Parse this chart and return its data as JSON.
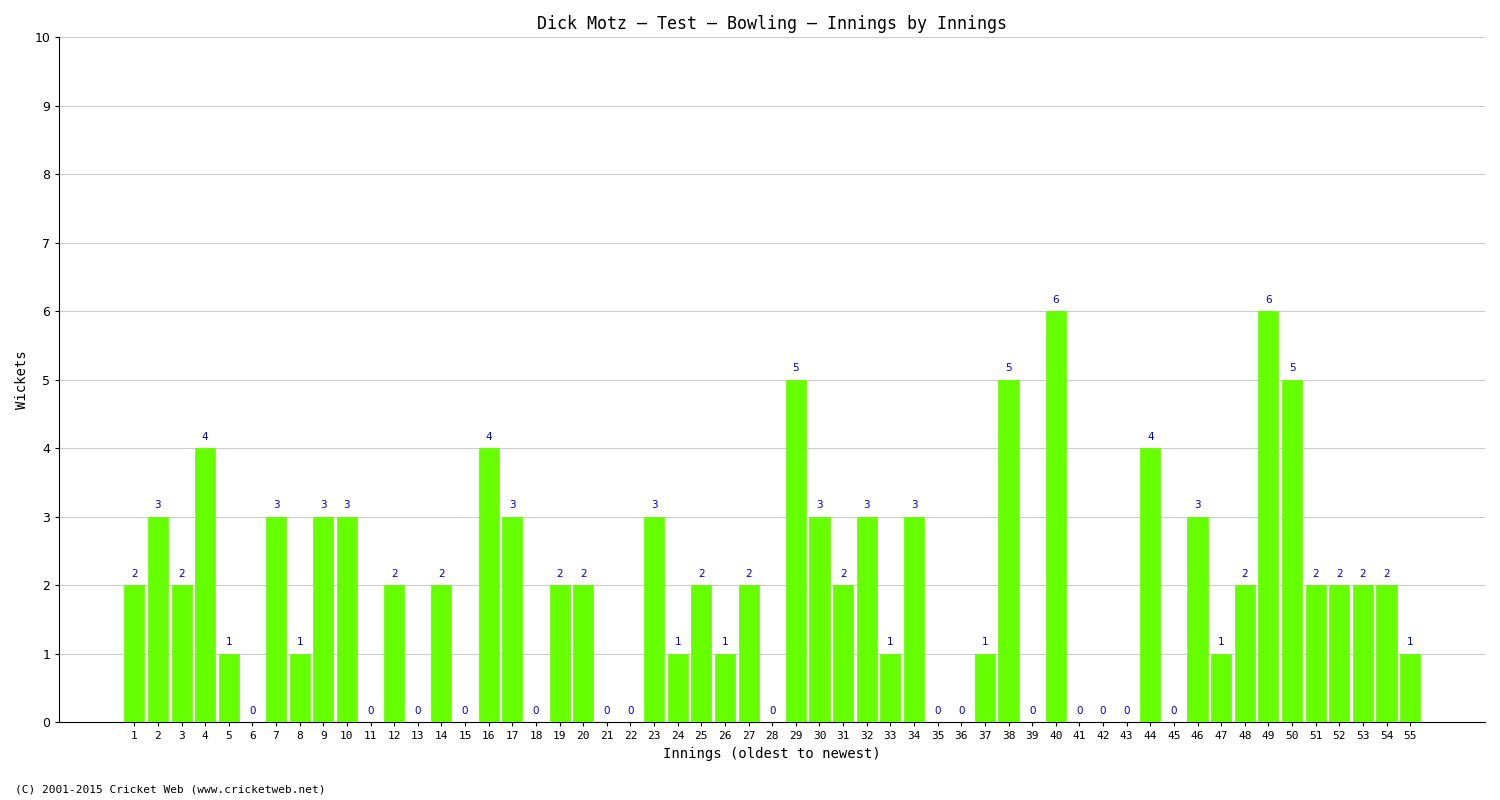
{
  "title": "Dick Motz – Test – Bowling – Innings by Innings",
  "xlabel": "Innings (oldest to newest)",
  "ylabel": "Wickets",
  "ylim": [
    0,
    10
  ],
  "yticks": [
    0,
    1,
    2,
    3,
    4,
    5,
    6,
    7,
    8,
    9,
    10
  ],
  "bar_color": "#66FF00",
  "bar_edge_color": "#66FF00",
  "label_color": "#0000CC",
  "background_color": "#FFFFFF",
  "grid_color": "#CCCCCC",
  "categories": [
    1,
    2,
    3,
    4,
    5,
    6,
    7,
    8,
    9,
    10,
    11,
    12,
    13,
    14,
    15,
    16,
    17,
    18,
    19,
    20,
    21,
    22,
    23,
    24,
    25,
    26,
    27,
    28,
    29,
    30,
    31,
    32,
    33,
    34,
    35,
    36,
    37,
    38,
    39,
    40,
    41,
    42,
    43,
    44,
    45,
    46,
    47,
    48,
    49,
    50,
    51,
    52,
    53,
    54,
    55
  ],
  "values": [
    2,
    3,
    2,
    4,
    1,
    0,
    3,
    1,
    3,
    3,
    0,
    2,
    0,
    2,
    0,
    4,
    3,
    0,
    2,
    2,
    0,
    0,
    3,
    1,
    2,
    1,
    2,
    0,
    5,
    3,
    2,
    3,
    1,
    3,
    0,
    0,
    1,
    5,
    0,
    6,
    0,
    0,
    0,
    4,
    0,
    3,
    1,
    2,
    6,
    5,
    2,
    2,
    2,
    2,
    1
  ],
  "footnote": "(C) 2001-2015 Cricket Web (www.cricketweb.net)"
}
